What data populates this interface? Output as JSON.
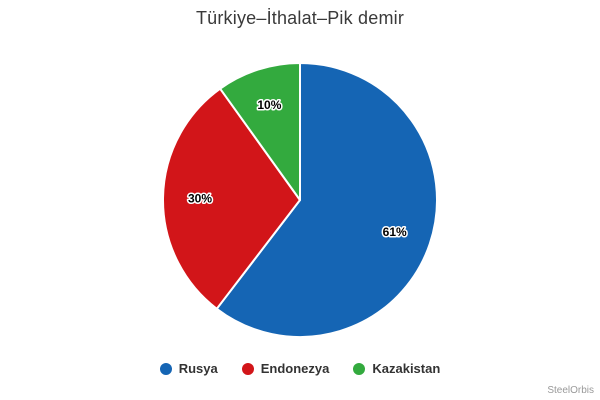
{
  "header": {
    "title": "Türkiye–İthalat–Pik demir"
  },
  "chart_data": {
    "type": "pie",
    "title": "Türkiye–İthalat–Pik demir",
    "categories": [
      "Rusya",
      "Endonezya",
      "Kazakistan"
    ],
    "values": [
      61,
      30,
      10
    ],
    "data_labels": [
      "61%",
      "30%",
      "10%"
    ],
    "colors": [
      "#1565b4",
      "#d21519",
      "#33aa3e"
    ],
    "unit": "percent",
    "start_angle_deg": 0,
    "direction": "clockwise",
    "legend_position": "bottom",
    "slice_border_color": "#ffffff"
  },
  "legend": {
    "items": [
      {
        "label": "Rusya",
        "color": "#1565b4"
      },
      {
        "label": "Endonezya",
        "color": "#d21519"
      },
      {
        "label": "Kazakistan",
        "color": "#33aa3e"
      }
    ]
  },
  "credits": {
    "label": "SteelOrbis"
  }
}
